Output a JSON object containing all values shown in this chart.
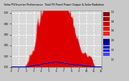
{
  "title": "Solar PV/Inverter Performance  Total PV Panel Power Output & Solar Radiation",
  "bg_color": "#c8c8c8",
  "plot_bg": "#d8d8d8",
  "grid_color": "#ffffff",
  "bar_color": "#dd0000",
  "dot_color": "#0000cc",
  "ylim_max": 1.05,
  "n_points": 350,
  "legend_colors_red": [
    "#ff2020",
    "#ee1111",
    "#cc0000",
    "#aa0000",
    "#880000"
  ],
  "legend_colors_blue": [
    "#4444ff",
    "#2222ee",
    "#0000cc",
    "#0000aa",
    "#000088"
  ]
}
